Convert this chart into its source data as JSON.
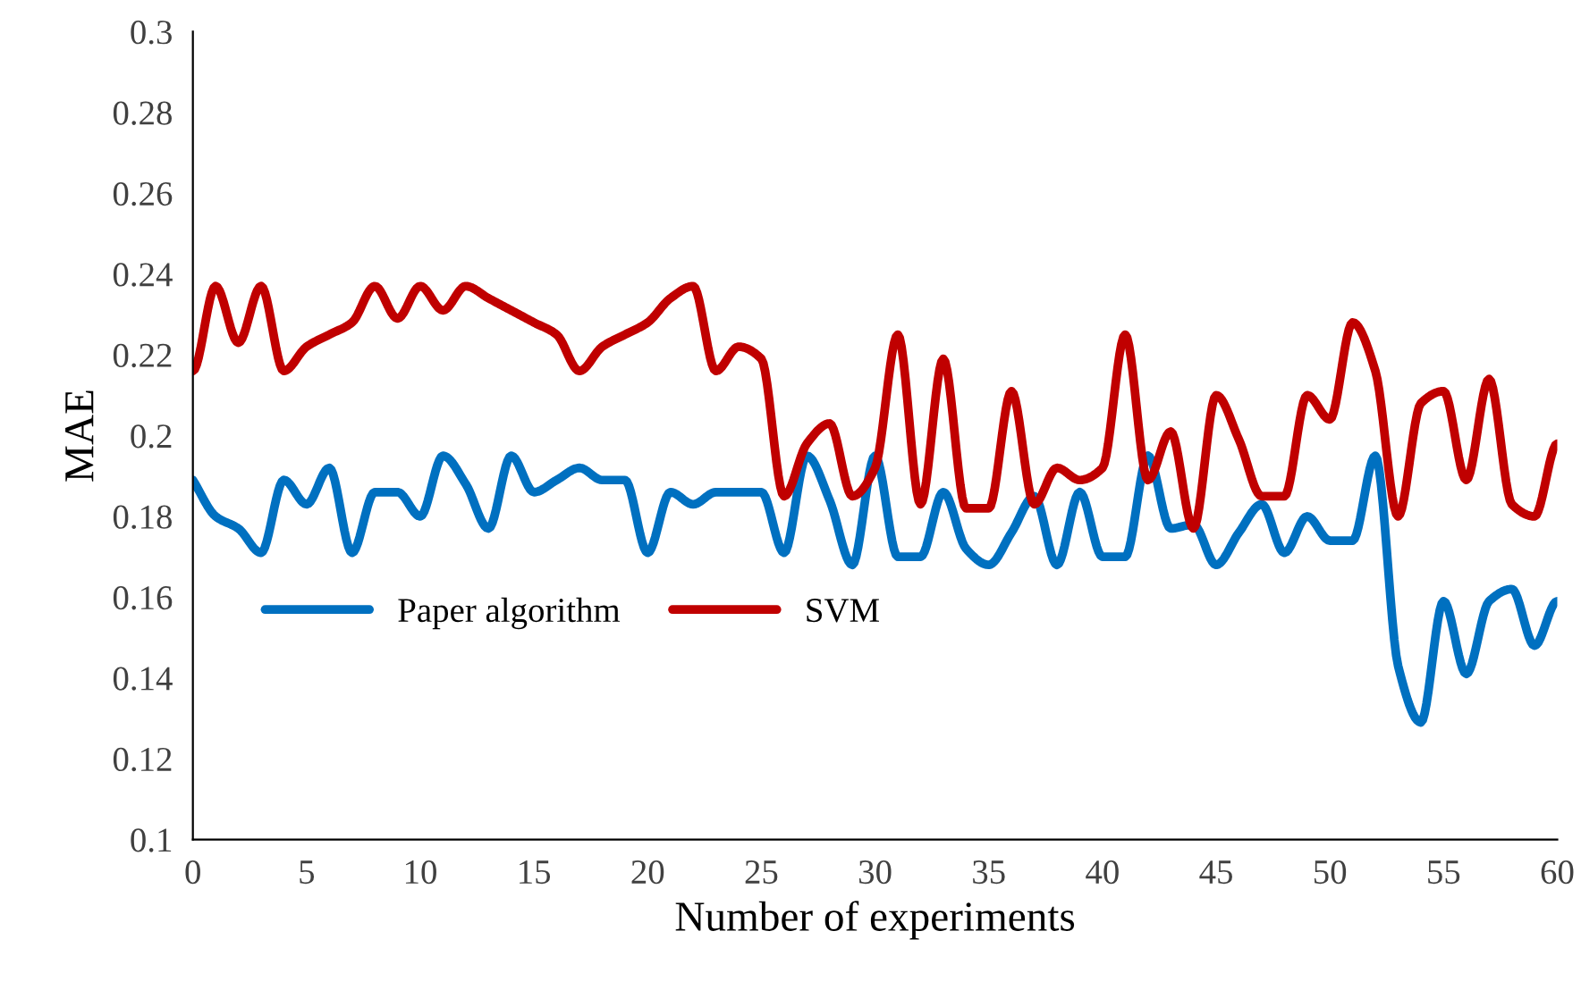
{
  "chart_data": {
    "type": "line",
    "xlabel": "Number of experiments",
    "ylabel": "MAE",
    "x": [
      0,
      1,
      2,
      3,
      4,
      5,
      6,
      7,
      8,
      9,
      10,
      11,
      12,
      13,
      14,
      15,
      16,
      17,
      18,
      19,
      20,
      21,
      22,
      23,
      24,
      25,
      26,
      27,
      28,
      29,
      30,
      31,
      32,
      33,
      34,
      35,
      36,
      37,
      38,
      39,
      40,
      41,
      42,
      43,
      44,
      45,
      46,
      47,
      48,
      49,
      50,
      51,
      52,
      53,
      54,
      55,
      56,
      57,
      58,
      59,
      60
    ],
    "series": [
      {
        "name": "Paper algorithm",
        "color": "#0070c0",
        "values": [
          0.189,
          0.18,
          0.177,
          0.171,
          0.189,
          0.183,
          0.192,
          0.171,
          0.186,
          0.186,
          0.18,
          0.195,
          0.188,
          0.177,
          0.195,
          0.186,
          0.189,
          0.192,
          0.189,
          0.189,
          0.171,
          0.186,
          0.183,
          0.186,
          0.186,
          0.186,
          0.171,
          0.195,
          0.184,
          0.168,
          0.195,
          0.17,
          0.17,
          0.186,
          0.172,
          0.168,
          0.176,
          0.185,
          0.168,
          0.186,
          0.17,
          0.17,
          0.195,
          0.177,
          0.178,
          0.168,
          0.176,
          0.183,
          0.171,
          0.18,
          0.174,
          0.174,
          0.195,
          0.143,
          0.129,
          0.159,
          0.141,
          0.159,
          0.162,
          0.148,
          0.159
        ]
      },
      {
        "name": "SVM",
        "color": "#c00000",
        "values": [
          0.216,
          0.237,
          0.223,
          0.237,
          0.216,
          0.222,
          0.225,
          0.228,
          0.237,
          0.229,
          0.237,
          0.231,
          0.237,
          0.234,
          0.231,
          0.228,
          0.225,
          0.216,
          0.222,
          0.225,
          0.228,
          0.234,
          0.237,
          0.216,
          0.222,
          0.219,
          0.185,
          0.198,
          0.203,
          0.185,
          0.192,
          0.225,
          0.183,
          0.219,
          0.182,
          0.182,
          0.211,
          0.183,
          0.192,
          0.189,
          0.192,
          0.225,
          0.189,
          0.201,
          0.177,
          0.21,
          0.199,
          0.185,
          0.185,
          0.21,
          0.204,
          0.228,
          0.216,
          0.18,
          0.208,
          0.211,
          0.189,
          0.214,
          0.183,
          0.18,
          0.198
        ]
      }
    ],
    "xlim": [
      0,
      60
    ],
    "xticks": [
      0,
      5,
      10,
      15,
      20,
      25,
      30,
      35,
      40,
      45,
      50,
      55,
      60
    ],
    "ylim": [
      0.1,
      0.3
    ],
    "yticks": [
      0.1,
      0.12,
      0.14,
      0.16,
      0.18,
      0.2,
      0.22,
      0.24,
      0.26,
      0.28,
      0.3
    ],
    "grid": false,
    "legend": "bottom left",
    "marker": "none",
    "line_style": "solid"
  }
}
